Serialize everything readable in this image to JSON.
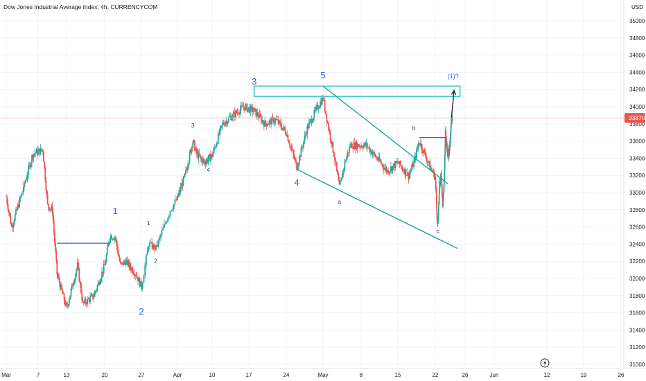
{
  "chart_data": {
    "type": "candlestick",
    "title": "Dow Jones Industrial Average Index, 4h, CURRENCYCOM",
    "currency": "USD",
    "last_price_label": "33870",
    "y_ticks": [
      "35000",
      "34800",
      "34600",
      "34400",
      "34200",
      "34000",
      "33800",
      "33600",
      "33400",
      "33200",
      "33000",
      "32800",
      "32600",
      "32400",
      "32200",
      "32000",
      "31800",
      "31600",
      "31400",
      "31200",
      "31000"
    ],
    "x_ticks": [
      "Mar",
      "7",
      "13",
      "20",
      "27",
      "Apr",
      "10",
      "17",
      "24",
      "May",
      "8",
      "15",
      "22",
      "26",
      "Jun",
      "12",
      "19",
      "26"
    ],
    "ylim": [
      30950,
      35250
    ],
    "grid": true,
    "colors": {
      "up": "#26a69a",
      "down": "#ef5350",
      "trendline": "#14a99c",
      "zone": "#3fc6d6",
      "horizontal": "#2962ff",
      "projection": "#1b2a4e",
      "last_price_line": "#f0b3b3",
      "last_price_tag": "#ef5350",
      "wave_label_large": "#2962ff",
      "wave_label_small": "#1e3a8a"
    },
    "wave_labels": [
      {
        "text": "1",
        "size": "large",
        "x": "Mar 22",
        "y": 32750
      },
      {
        "text": "2",
        "size": "large",
        "x": "Mar 27",
        "y": 31580
      },
      {
        "text": "1",
        "size": "small",
        "x": "Mar 28",
        "y": 32620
      },
      {
        "text": "2",
        "size": "small",
        "x": "Mar 29",
        "y": 32180
      },
      {
        "text": "3",
        "size": "small",
        "x": "Apr 5",
        "y": 33760
      },
      {
        "text": "4",
        "size": "small",
        "x": "Apr 9",
        "y": 33240
      },
      {
        "text": "3",
        "size": "large",
        "x": "Apr 18",
        "y": 34260
      },
      {
        "text": "4",
        "size": "large",
        "x": "Apr 26",
        "y": 33080
      },
      {
        "text": "5",
        "size": "large",
        "x": "May 1",
        "y": 34330
      },
      {
        "text": "a",
        "size": "small",
        "x": "May 4",
        "y": 32870
      },
      {
        "text": "b",
        "size": "small",
        "x": "May 18",
        "y": 33730
      },
      {
        "text": "c",
        "size": "small",
        "x": "May 25",
        "y": 32530
      },
      {
        "text": "(1)?",
        "size": "blue",
        "x": "Jun 12",
        "y": 34330
      }
    ],
    "resistance_zone": {
      "from": "Apr 18",
      "to": "Jun 20",
      "low": 34120,
      "high": 34240
    },
    "channel": [
      {
        "from": [
          "May 1",
          34240
        ],
        "to": [
          "Jun 6",
          33100
        ]
      },
      {
        "from": [
          "Apr 26",
          33270
        ],
        "to": [
          "Jun 17",
          32350
        ]
      }
    ],
    "horizontal_levels": [
      {
        "from": "Mar 11",
        "to": "Mar 21",
        "price": 32410
      },
      {
        "from": "May 19",
        "to": "Jun 4",
        "price": 33640
      }
    ],
    "projection_arrow": {
      "from": [
        "Jun 10",
        33870
      ],
      "to": [
        "Jun 13",
        34190
      ]
    }
  }
}
